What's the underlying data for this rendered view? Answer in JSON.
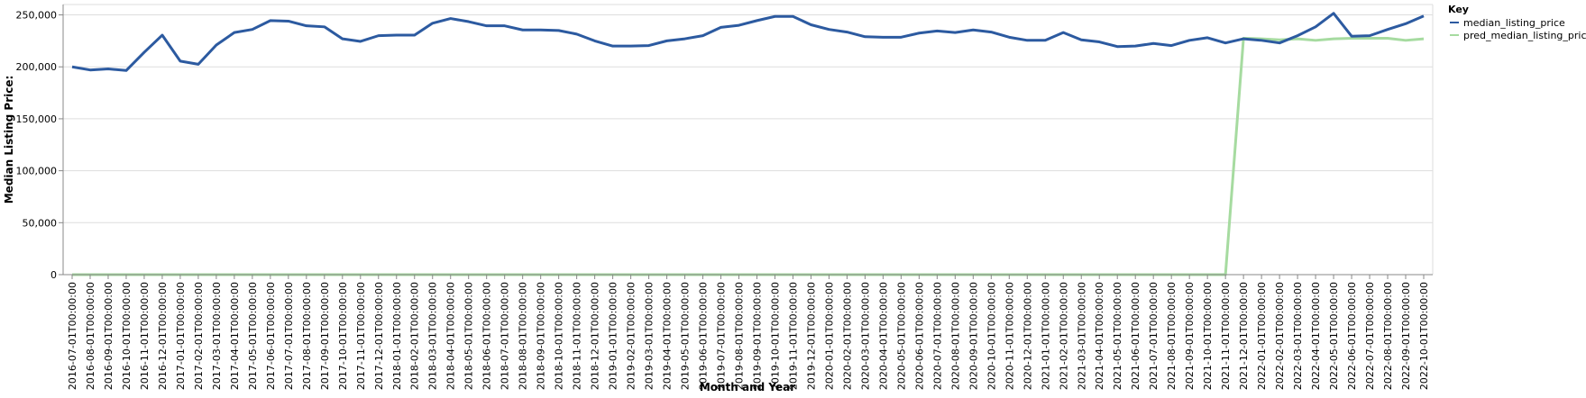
{
  "chart_data": {
    "type": "line",
    "xlabel": "Month and Year",
    "ylabel": "Median Listing Price:",
    "ylim": [
      0,
      260000
    ],
    "y_ticks": [
      0,
      50000,
      100000,
      150000,
      200000,
      250000
    ],
    "y_tick_labels": [
      "0",
      "50,000",
      "100,000",
      "150,000",
      "200,000",
      "250,000"
    ],
    "grid": true,
    "legend": {
      "title": "Key",
      "placement": "top-right"
    },
    "x": [
      "2016-07-01T00:00:00",
      "2016-08-01T00:00:00",
      "2016-09-01T00:00:00",
      "2016-10-01T00:00:00",
      "2016-11-01T00:00:00",
      "2016-12-01T00:00:00",
      "2017-01-01T00:00:00",
      "2017-02-01T00:00:00",
      "2017-03-01T00:00:00",
      "2017-04-01T00:00:00",
      "2017-05-01T00:00:00",
      "2017-06-01T00:00:00",
      "2017-07-01T00:00:00",
      "2017-08-01T00:00:00",
      "2017-09-01T00:00:00",
      "2017-10-01T00:00:00",
      "2017-11-01T00:00:00",
      "2017-12-01T00:00:00",
      "2018-01-01T00:00:00",
      "2018-02-01T00:00:00",
      "2018-03-01T00:00:00",
      "2018-04-01T00:00:00",
      "2018-05-01T00:00:00",
      "2018-06-01T00:00:00",
      "2018-07-01T00:00:00",
      "2018-08-01T00:00:00",
      "2018-09-01T00:00:00",
      "2018-10-01T00:00:00",
      "2018-11-01T00:00:00",
      "2018-12-01T00:00:00",
      "2019-01-01T00:00:00",
      "2019-02-01T00:00:00",
      "2019-03-01T00:00:00",
      "2019-04-01T00:00:00",
      "2019-05-01T00:00:00",
      "2019-06-01T00:00:00",
      "2019-07-01T00:00:00",
      "2019-08-01T00:00:00",
      "2019-09-01T00:00:00",
      "2019-10-01T00:00:00",
      "2019-11-01T00:00:00",
      "2019-12-01T00:00:00",
      "2020-01-01T00:00:00",
      "2020-02-01T00:00:00",
      "2020-03-01T00:00:00",
      "2020-04-01T00:00:00",
      "2020-05-01T00:00:00",
      "2020-06-01T00:00:00",
      "2020-07-01T00:00:00",
      "2020-08-01T00:00:00",
      "2020-09-01T00:00:00",
      "2020-10-01T00:00:00",
      "2020-11-01T00:00:00",
      "2020-12-01T00:00:00",
      "2021-01-01T00:00:00",
      "2021-02-01T00:00:00",
      "2021-03-01T00:00:00",
      "2021-04-01T00:00:00",
      "2021-05-01T00:00:00",
      "2021-06-01T00:00:00",
      "2021-07-01T00:00:00",
      "2021-08-01T00:00:00",
      "2021-09-01T00:00:00",
      "2021-10-01T00:00:00",
      "2021-11-01T00:00:00",
      "2021-12-01T00:00:00",
      "2022-01-01T00:00:00",
      "2022-02-01T00:00:00",
      "2022-03-01T00:00:00",
      "2022-04-01T00:00:00",
      "2022-05-01T00:00:00",
      "2022-06-01T00:00:00",
      "2022-07-01T00:00:00",
      "2022-08-01T00:00:00",
      "2022-09-01T00:00:00",
      "2022-10-01T00:00:00"
    ],
    "series": [
      {
        "name": "median_listing_price",
        "color": "#2c5aa0",
        "values": [
          200000,
          197000,
          198000,
          196500,
          214000,
          230500,
          205500,
          202500,
          221000,
          233000,
          236000,
          244500,
          244000,
          239500,
          238500,
          227000,
          224500,
          230000,
          230500,
          230500,
          242000,
          246500,
          243500,
          239500,
          239500,
          235500,
          235500,
          235000,
          231500,
          225000,
          220000,
          220000,
          220500,
          225000,
          227000,
          230000,
          238000,
          240000,
          244500,
          248500,
          248500,
          240500,
          236000,
          233500,
          229000,
          228500,
          228500,
          232500,
          234500,
          233000,
          235500,
          233500,
          228500,
          225500,
          225500,
          233000,
          226000,
          224000,
          219500,
          220000,
          222500,
          220500,
          225500,
          228000,
          223000,
          227000,
          225500,
          223000,
          230000,
          238500,
          251500,
          229500,
          230000,
          236000,
          241500,
          249000
        ]
      },
      {
        "name": "pred_median_listing_price",
        "color": "#a6dba0",
        "values": [
          0,
          0,
          0,
          0,
          0,
          0,
          0,
          0,
          0,
          0,
          0,
          0,
          0,
          0,
          0,
          0,
          0,
          0,
          0,
          0,
          0,
          0,
          0,
          0,
          0,
          0,
          0,
          0,
          0,
          0,
          0,
          0,
          0,
          0,
          0,
          0,
          0,
          0,
          0,
          0,
          0,
          0,
          0,
          0,
          0,
          0,
          0,
          0,
          0,
          0,
          0,
          0,
          0,
          0,
          0,
          0,
          0,
          0,
          0,
          0,
          0,
          0,
          0,
          0,
          0,
          227500,
          227000,
          226000,
          227000,
          225500,
          227000,
          227500,
          227500,
          227500,
          225500,
          227000
        ]
      }
    ]
  }
}
